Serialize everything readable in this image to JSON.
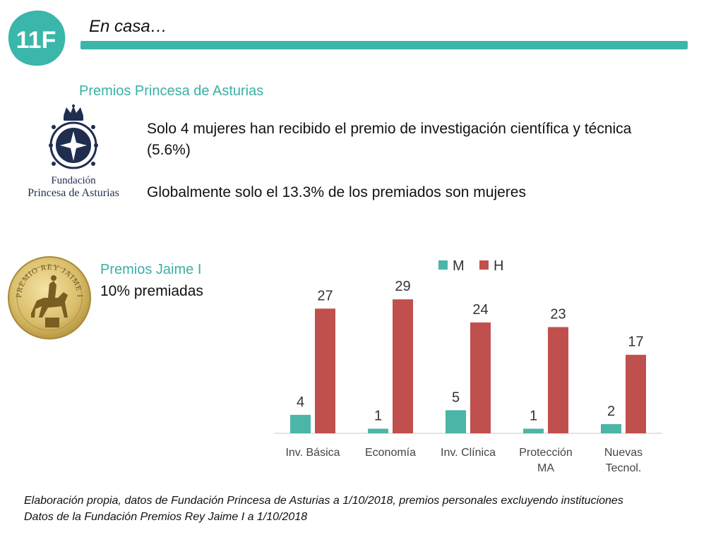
{
  "header": {
    "logo_text": "11F",
    "title": "En casa…"
  },
  "princesa": {
    "heading": "Premios Princesa de Asturias",
    "logo_line1": "Fundación",
    "logo_line2": "Princesa de Asturias",
    "text1": "Solo 4 mujeres han recibido el premio de investigación científica y técnica (5.6%)",
    "text2": "Globalmente solo el 13.3% de los premiados son mujeres"
  },
  "jaime": {
    "medal_text": "PREMIO REY JAIME I",
    "heading": "Premios Jaime I",
    "subtitle": "10% premiadas"
  },
  "chart_data": {
    "type": "bar",
    "categories": [
      [
        "Inv. Básica"
      ],
      [
        "Economía"
      ],
      [
        "Inv. Clínica"
      ],
      [
        "Protección",
        "MA"
      ],
      [
        "Nuevas",
        "Tecnol."
      ]
    ],
    "series": [
      {
        "name": "M",
        "values": [
          4,
          1,
          5,
          1,
          2
        ],
        "color": "#4bb5a8"
      },
      {
        "name": "H",
        "values": [
          27,
          29,
          24,
          23,
          17
        ],
        "color": "#c0504d"
      }
    ],
    "ylim": [
      0,
      33
    ],
    "legend": "top",
    "grid": false,
    "data_labels": true
  },
  "footnote": {
    "line1": "Elaboración propia, datos de Fundación Princesa de Asturias a 1/10/2018, premios personales excluyendo instituciones",
    "line2": "Datos de la Fundación Premios Rey Jaime I a 1/10/2018"
  }
}
